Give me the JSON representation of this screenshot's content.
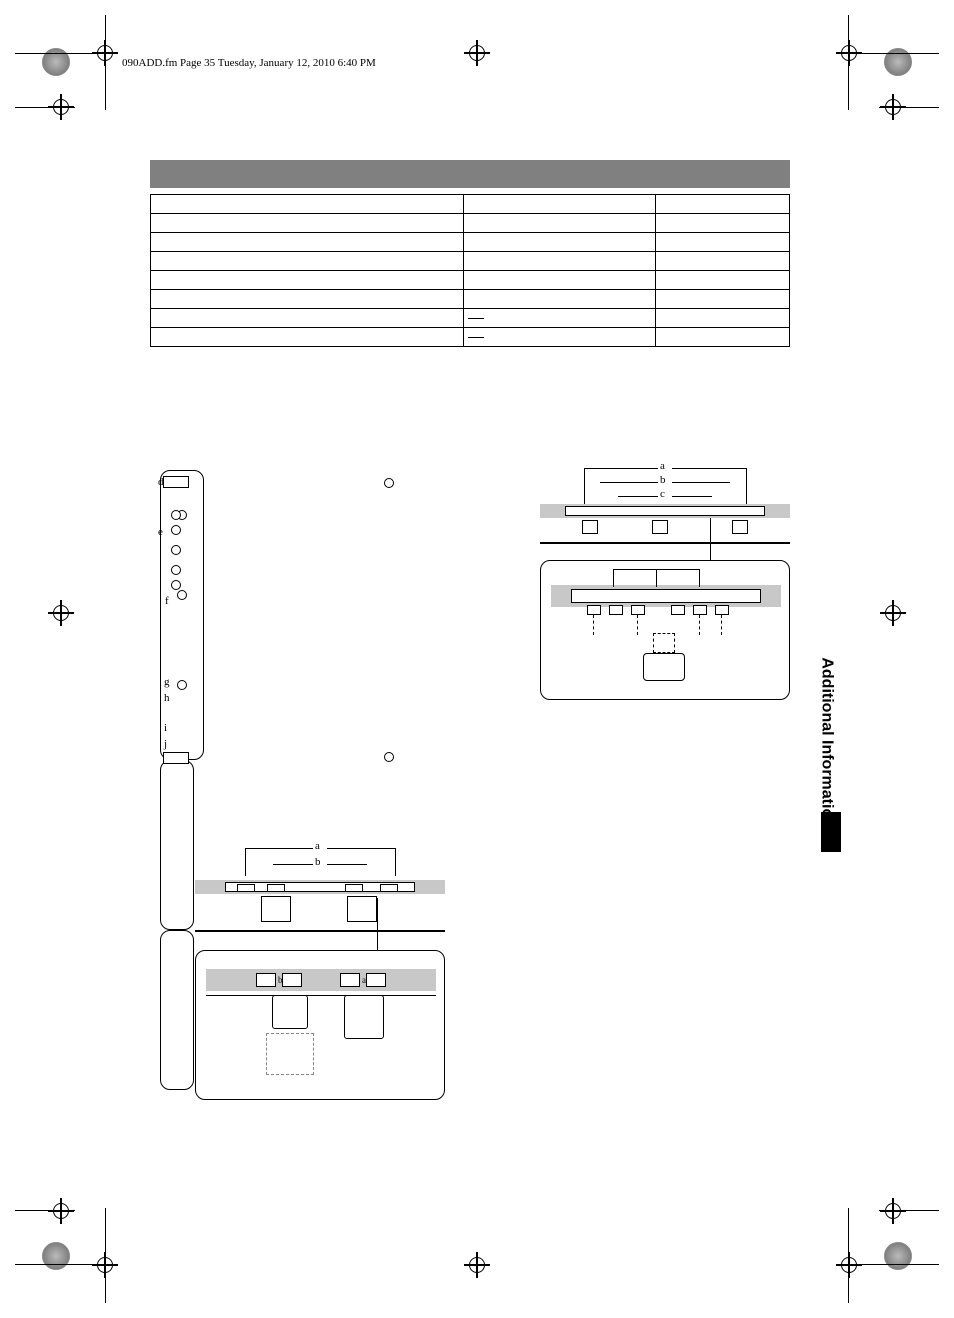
{
  "headnote": "090ADD.fm  Page 35  Tuesday, January 12, 2010  6:40 PM",
  "side_tab": "Additional Information",
  "table": {
    "rows": [
      {
        "c1": "",
        "c2": "",
        "c3": ""
      },
      {
        "c1": "",
        "c2": "",
        "c3": ""
      },
      {
        "c1": "",
        "c2": "",
        "c3": ""
      },
      {
        "c1": "",
        "c2": "",
        "c3": ""
      },
      {
        "c1": "",
        "c2": "",
        "c3": ""
      },
      {
        "c1": "",
        "c2": "",
        "c3": ""
      },
      {
        "c1": "",
        "c2": "—",
        "c3": ""
      },
      {
        "c1": "",
        "c2": "—",
        "c3": ""
      }
    ]
  },
  "diagram_labels": {
    "upper_left_letters": [
      "d",
      "e",
      "f",
      "g",
      "h",
      "i",
      "j"
    ],
    "lower_left_top": "a",
    "lower_left_mid": "b",
    "upper_right_top": "a",
    "upper_right_mid": "b",
    "upper_right_low": "c"
  },
  "colors": {
    "header_bar": "#808080",
    "grey_fill": "#c8c8c8",
    "line": "#000000",
    "bg": "#ffffff"
  }
}
